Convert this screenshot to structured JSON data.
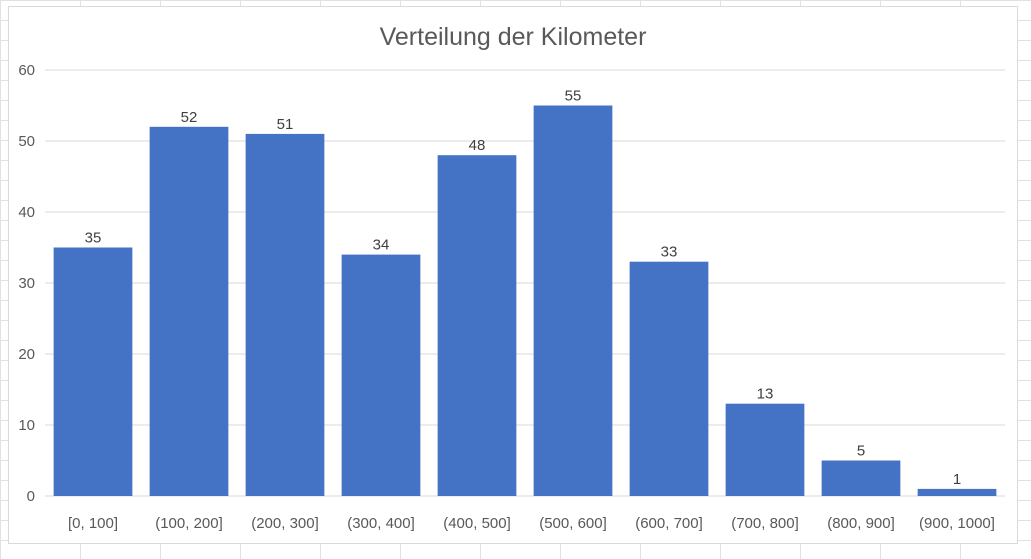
{
  "chart_data": {
    "type": "bar",
    "title": "Verteilung der Kilometer",
    "xlabel": "",
    "ylabel": "",
    "categories": [
      "[0, 100]",
      "(100, 200]",
      "(200, 300]",
      "(300, 400]",
      "(400, 500]",
      "(500, 600]",
      "(600, 700]",
      "(700, 800]",
      "(800, 900]",
      "(900, 1000]"
    ],
    "values": [
      35,
      52,
      51,
      34,
      48,
      55,
      33,
      13,
      5,
      1
    ],
    "ylim": [
      0,
      60
    ],
    "yticks": [
      0,
      10,
      20,
      30,
      40,
      50,
      60
    ],
    "grid": true,
    "legend": "none",
    "bar_color": "#4472C4",
    "gridline_color": "#D9D9D9"
  }
}
